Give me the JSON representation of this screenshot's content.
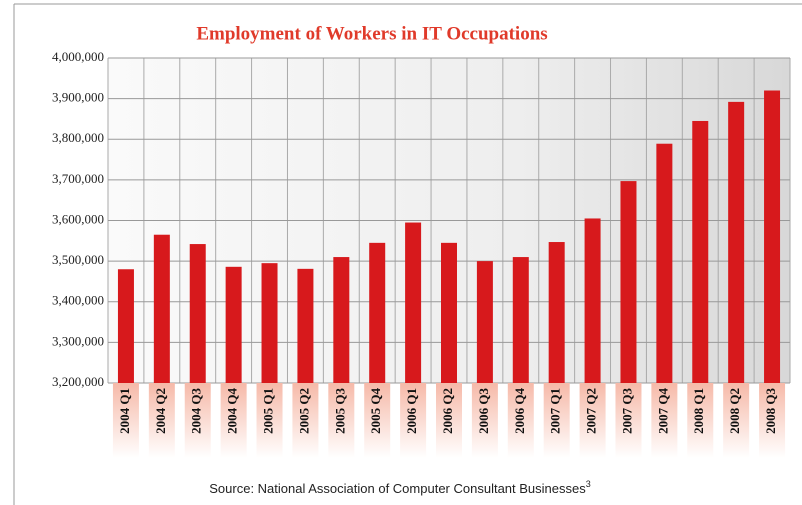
{
  "chart_data": {
    "type": "bar",
    "title": "Employment of Workers in IT Occupations",
    "categories": [
      "2004 Q1",
      "2004 Q2",
      "2004 Q3",
      "2004 Q4",
      "2005 Q1",
      "2005 Q2",
      "2005 Q3",
      "2005 Q4",
      "2006 Q1",
      "2006 Q2",
      "2006 Q3",
      "2006 Q4",
      "2007 Q1",
      "2007 Q2",
      "2007 Q3",
      "2007 Q4",
      "2008 Q1",
      "2008 Q2",
      "2008 Q3"
    ],
    "values": [
      3480000,
      3565000,
      3542000,
      3486000,
      3495000,
      3481000,
      3510000,
      3545000,
      3595000,
      3545000,
      3500000,
      3510000,
      3547000,
      3605000,
      3697000,
      3789000,
      3845000,
      3892000,
      3920000
    ],
    "color": "#d7191c",
    "ylim": [
      3200000,
      4000000
    ],
    "yticks": [
      {
        "value": 3200000,
        "label": "3,200,000"
      },
      {
        "value": 3300000,
        "label": "3,300,000"
      },
      {
        "value": 3400000,
        "label": "3,400,000"
      },
      {
        "value": 3500000,
        "label": "3,500,000"
      },
      {
        "value": 3600000,
        "label": "3,600,000"
      },
      {
        "value": 3700000,
        "label": "3,700,000"
      },
      {
        "value": 3800000,
        "label": "3,800,000"
      },
      {
        "value": 3900000,
        "label": "3,900,000"
      },
      {
        "value": 4000000,
        "label": "4,000,000"
      }
    ],
    "grid": true,
    "source": "Source: National Association of Computer Consultant Businesses",
    "source_note": "3"
  }
}
